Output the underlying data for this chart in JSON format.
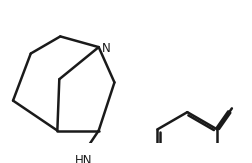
{
  "bg_color": "#ffffff",
  "line_color": "#1a1a1a",
  "line_width": 1.8,
  "fig_width": 2.53,
  "fig_height": 1.63,
  "dpi": 100,
  "nh_label": "HN",
  "n_label": "N",
  "font_size_n": 8.5,
  "font_size_nh": 8.5
}
